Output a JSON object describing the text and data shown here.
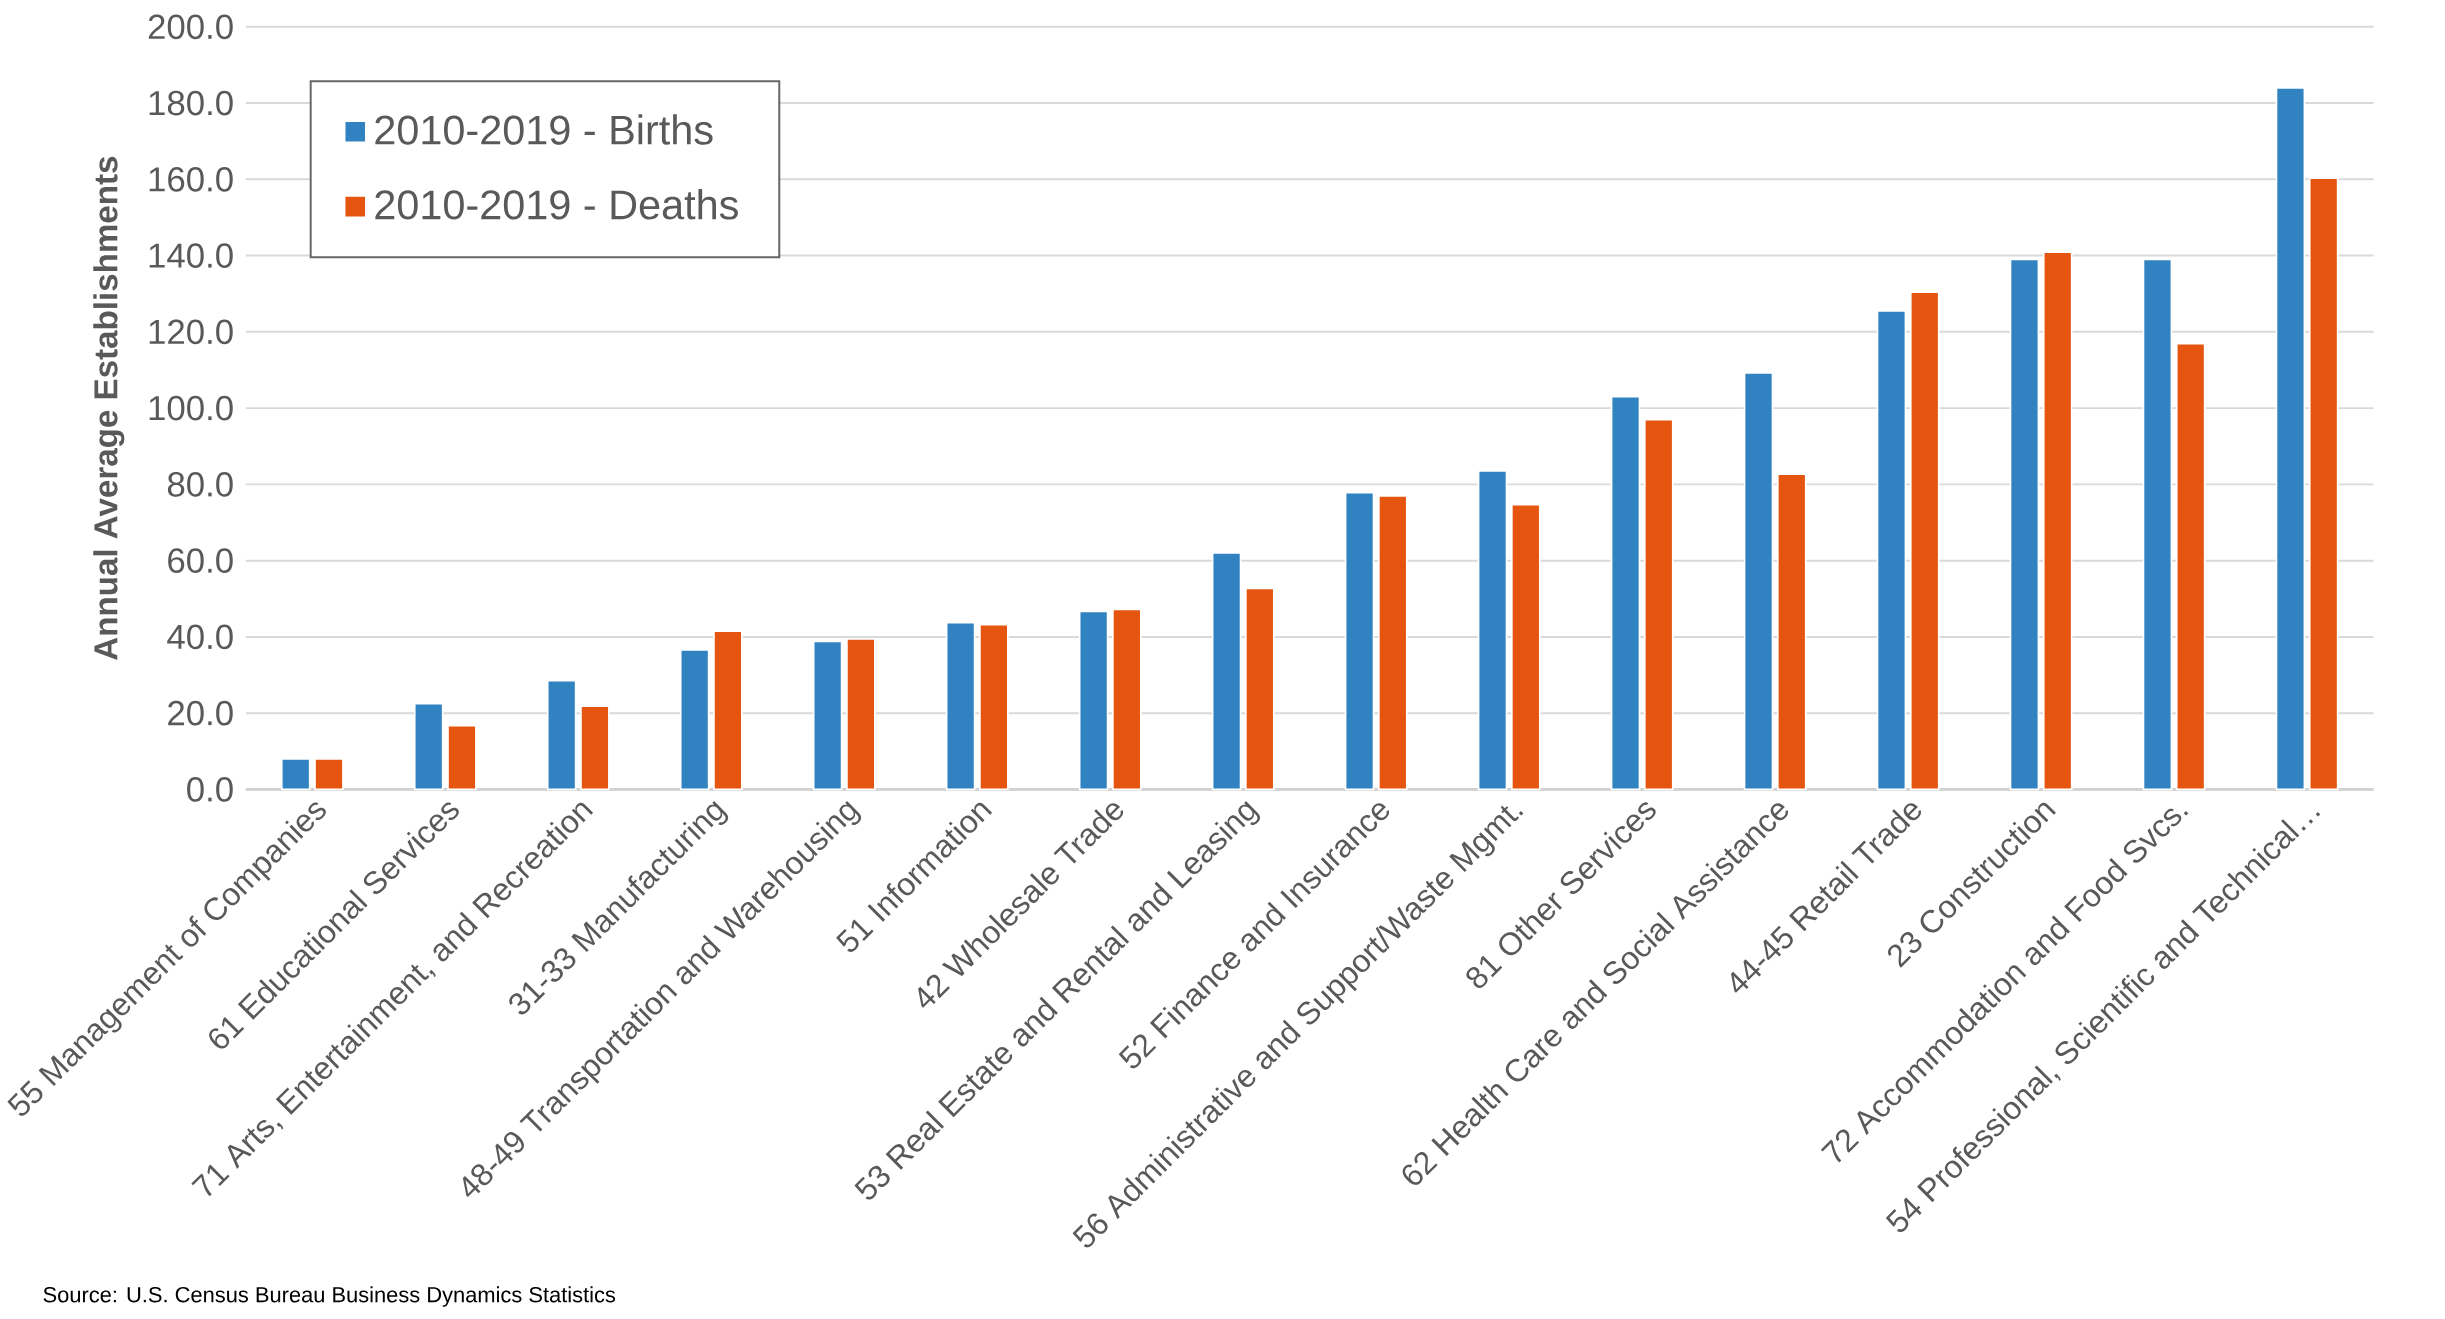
{
  "chart_data": {
    "type": "bar",
    "ylabel": "Annual Average Establishments",
    "categories": [
      "55 Management of Companies",
      "61 Educational Services",
      "71 Arts, Entertainment, and Recreation",
      "31-33 Manufacturing",
      "48-49 Transportation and Warehousing",
      "51 Information",
      "42 Wholesale Trade",
      "53 Real Estate and Rental and Leasing",
      "52 Finance and Insurance",
      "56 Administrative and Support/Waste Mgmt.",
      "81 Other Services",
      "62 Health Care and Social Assistance",
      "44-45 Retail Trade",
      "23 Construction",
      "72 Accommodation and Food Svcs.",
      "54 Professional, Scientific and Technical…"
    ],
    "series": [
      {
        "name": "2010-2019 - Births",
        "color": "#3182c0",
        "values": [
          8.0,
          22.5,
          28.5,
          36.6,
          38.8,
          43.7,
          46.7,
          62.0,
          77.8,
          83.5,
          103.0,
          109.2,
          125.5,
          139.0,
          139.0,
          184.0
        ]
      },
      {
        "name": "2010-2019 - Deaths",
        "color": "#e5550f",
        "values": [
          8.0,
          16.7,
          21.8,
          41.5,
          39.5,
          43.2,
          47.2,
          52.7,
          77.0,
          74.7,
          97.0,
          82.7,
          130.4,
          140.9,
          116.9,
          160.3
        ]
      }
    ],
    "ylim": [
      0,
      200
    ],
    "yticks": [
      {
        "value": 0,
        "label": "0.0"
      },
      {
        "value": 20,
        "label": "20.0"
      },
      {
        "value": 40,
        "label": "40.0"
      },
      {
        "value": 60,
        "label": "60.0"
      },
      {
        "value": 80,
        "label": "80.0"
      },
      {
        "value": 100,
        "label": "100.0"
      },
      {
        "value": 120,
        "label": "120.0"
      },
      {
        "value": 140,
        "label": "140.0"
      },
      {
        "value": 160,
        "label": "160.0"
      },
      {
        "value": 180,
        "label": "180.0"
      },
      {
        "value": 200,
        "label": "200.0"
      }
    ],
    "grid": "y",
    "legend": "top left",
    "annotations": [
      "Source: U.S. Census Bureau Business Dynamics Statistics"
    ]
  }
}
